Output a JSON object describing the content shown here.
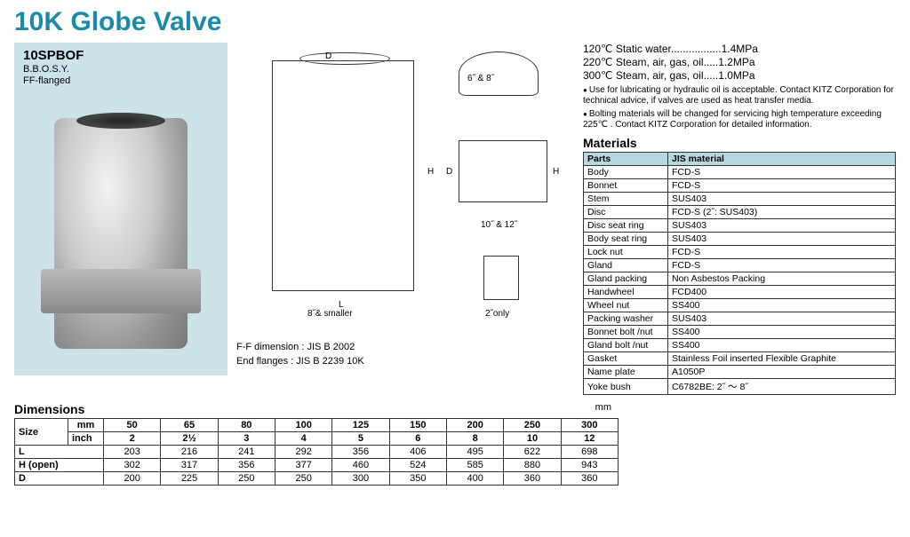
{
  "title": "10K Globe Valve",
  "model": {
    "code": "10SPBOF",
    "line1": "B.B.O.S.Y.",
    "line2": "FF-flanged"
  },
  "diagram": {
    "dim_d": "D",
    "dim_h": "H",
    "dim_l": "L",
    "label_main": "8˝& smaller",
    "label_top_right": "6˝ & 8˝",
    "label_mid_right": "10˝ & 12˝",
    "label_bot_right": "2˝only",
    "spec1": "F-F dimension :  JIS B 2002",
    "spec2": "End flanges :      JIS B 2239 10K"
  },
  "ratings": [
    {
      "temp": "120℃",
      "media": "Static water",
      "dots": ".................",
      "press": "1.4MPa"
    },
    {
      "temp": "220℃",
      "media": "Steam, air, gas, oil",
      "dots": ".....",
      "press": "1.2MPa"
    },
    {
      "temp": "300℃",
      "media": "Steam, air, gas, oil",
      "dots": ".....",
      "press": "1.0MPa"
    }
  ],
  "notes": [
    "Use for lubricating or hydraulic oil is acceptable. Contact KITZ Corporation for technical advice, if valves are used as heat transfer media.",
    "Bolting materials will be changed for servicing high temperature exceeding 225℃ . Contact KITZ Corporation for detailed information."
  ],
  "materials": {
    "heading": "Materials",
    "headers": [
      "Parts",
      "JIS material"
    ],
    "rows": [
      [
        "Body",
        "FCD-S"
      ],
      [
        "Bonnet",
        "FCD-S"
      ],
      [
        "Stem",
        "SUS403"
      ],
      [
        "Disc",
        "FCD-S (2˝: SUS403)"
      ],
      [
        "Disc seat ring",
        "SUS403"
      ],
      [
        "Body seat ring",
        "SUS403"
      ],
      [
        "Lock nut",
        "FCD-S"
      ],
      [
        "Gland",
        "FCD-S"
      ],
      [
        "Gland packing",
        "Non Asbestos Packing"
      ],
      [
        "Handwheel",
        "FCD400"
      ],
      [
        "Wheel nut",
        "SS400"
      ],
      [
        "Packing washer",
        "SUS403"
      ],
      [
        "Bonnet bolt /nut",
        "SS400"
      ],
      [
        "Gland bolt /nut",
        "SS400"
      ],
      [
        "Gasket",
        "Stainless Foil inserted Flexible Graphite"
      ],
      [
        "Name plate",
        "A1050P"
      ],
      [
        "Yoke bush",
        "C6782BE: 2˝ ～ 8˝"
      ]
    ]
  },
  "dimensions": {
    "heading": "Dimensions",
    "unit": "mm",
    "size_label": "Size",
    "unit_labels": [
      "mm",
      "inch"
    ],
    "sizes_mm": [
      "50",
      "65",
      "80",
      "100",
      "125",
      "150",
      "200",
      "250",
      "300"
    ],
    "sizes_inch": [
      "2",
      "2½",
      "3",
      "4",
      "5",
      "6",
      "8",
      "10",
      "12"
    ],
    "rows": [
      {
        "label": "L",
        "vals": [
          "203",
          "216",
          "241",
          "292",
          "356",
          "406",
          "495",
          "622",
          "698"
        ]
      },
      {
        "label": "H (open)",
        "vals": [
          "302",
          "317",
          "356",
          "377",
          "460",
          "524",
          "585",
          "880",
          "943"
        ]
      },
      {
        "label": "D",
        "vals": [
          "200",
          "225",
          "250",
          "250",
          "300",
          "350",
          "400",
          "360",
          "360"
        ]
      }
    ]
  },
  "colors": {
    "title": "#1a8aa8",
    "box_bg": "#cce3ea",
    "table_header_bg": "#b8d8df",
    "border": "#333333",
    "text": "#000000",
    "page_bg": "#ffffff"
  }
}
